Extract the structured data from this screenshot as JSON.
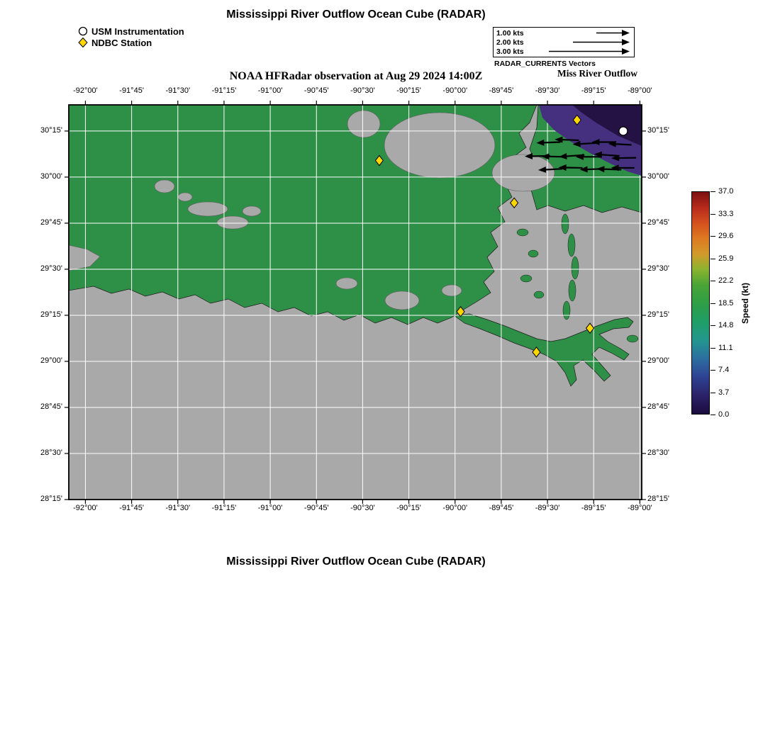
{
  "page": {
    "top_title": "Mississippi River Outflow Ocean Cube (RADAR)",
    "subtitle": "NOAA HFRadar observation at Aug 29 2024 14:00Z",
    "bottom_title": "Mississippi River Outflow Ocean Cube (RADAR)"
  },
  "legend": {
    "usm_label": "USM Instrumentation",
    "ndbc_label": "NDBC Station"
  },
  "vector_scale": {
    "rows": [
      {
        "label": "1.00 kts",
        "len": 45
      },
      {
        "label": "2.00 kts",
        "len": 78
      },
      {
        "label": "3.00 kts",
        "len": 112
      }
    ],
    "caption": "RADAR_CURRENTS Vectors",
    "subcaption": "Miss River Outflow"
  },
  "colorbar": {
    "label": "Speed (kt)",
    "ticks": [
      "37.0",
      "33.3",
      "29.6",
      "25.9",
      "22.2",
      "18.5",
      "14.8",
      "11.1",
      "7.4",
      "3.7",
      "0.0"
    ],
    "stops": [
      [
        "#1a0b3d",
        0
      ],
      [
        "#2b2168",
        8
      ],
      [
        "#2e4494",
        17
      ],
      [
        "#2d6fa0",
        25
      ],
      [
        "#23968f",
        33
      ],
      [
        "#1f9e68",
        41
      ],
      [
        "#2f9e45",
        50
      ],
      [
        "#49a437",
        58
      ],
      [
        "#8ab32f",
        65
      ],
      [
        "#d19a2a",
        72
      ],
      [
        "#dd7a22",
        79
      ],
      [
        "#d4511f",
        86
      ],
      [
        "#b62a1b",
        93
      ],
      [
        "#7c1012",
        100
      ]
    ]
  },
  "axes": {
    "lon_range": [
      -92.09,
      -88.99
    ],
    "lat_range": [
      28.25,
      30.392
    ],
    "lon_ticks": [
      {
        "v": -92.0,
        "label": "-92°00'"
      },
      {
        "v": -91.75,
        "label": "-91°45'"
      },
      {
        "v": -91.5,
        "label": "-91°30'"
      },
      {
        "v": -91.25,
        "label": "-91°15'"
      },
      {
        "v": -91.0,
        "label": "-91°00'"
      },
      {
        "v": -90.75,
        "label": "-90°45'"
      },
      {
        "v": -90.5,
        "label": "-90°30'"
      },
      {
        "v": -90.25,
        "label": "-90°15'"
      },
      {
        "v": -90.0,
        "label": "-90°00'"
      },
      {
        "v": -89.75,
        "label": "-89°45'"
      },
      {
        "v": -89.5,
        "label": "-89°30'"
      },
      {
        "v": -89.25,
        "label": "-89°15'"
      },
      {
        "v": -89.0,
        "label": "-89°00'"
      }
    ],
    "lat_ticks": [
      {
        "v": 30.25,
        "label": "30°15'"
      },
      {
        "v": 30.0,
        "label": "30°00'"
      },
      {
        "v": 29.75,
        "label": "29°45'"
      },
      {
        "v": 29.5,
        "label": "29°30'"
      },
      {
        "v": 29.25,
        "label": "29°15'"
      },
      {
        "v": 29.0,
        "label": "29°00'"
      },
      {
        "v": 28.75,
        "label": "28°45'"
      },
      {
        "v": 28.5,
        "label": "28°30'"
      },
      {
        "v": 28.25,
        "label": "28°15'"
      }
    ]
  },
  "map": {
    "colors": {
      "water": "#a9a9a9",
      "land": "#2e8f47",
      "land_stroke": "#1c1c1c",
      "water_stroke": "#5f5f5f",
      "radar_base": "#453080",
      "radar_core": "#241244",
      "grid": "#ffffff",
      "frame": "#000000",
      "vector": "#000000",
      "ndbc_fill": "#ffd700",
      "usm_fill": "#ffffff"
    },
    "land_polygons": [
      [
        [
          0,
          0
        ],
        [
          660,
          0
        ],
        [
          650,
          25
        ],
        [
          635,
          40
        ],
        [
          645,
          60
        ],
        [
          625,
          75
        ],
        [
          635,
          95
        ],
        [
          615,
          110
        ],
        [
          625,
          130
        ],
        [
          605,
          145
        ],
        [
          615,
          165
        ],
        [
          595,
          180
        ],
        [
          605,
          200
        ],
        [
          590,
          215
        ],
        [
          600,
          235
        ],
        [
          585,
          250
        ],
        [
          595,
          265
        ],
        [
          575,
          278
        ],
        [
          555,
          290
        ],
        [
          540,
          300
        ],
        [
          520,
          308
        ],
        [
          500,
          300
        ],
        [
          478,
          310
        ],
        [
          455,
          300
        ],
        [
          432,
          308
        ],
        [
          410,
          296
        ],
        [
          388,
          304
        ],
        [
          365,
          292
        ],
        [
          342,
          298
        ],
        [
          318,
          286
        ],
        [
          295,
          292
        ],
        [
          272,
          280
        ],
        [
          248,
          286
        ],
        [
          225,
          274
        ],
        [
          200,
          280
        ],
        [
          178,
          268
        ],
        [
          155,
          274
        ],
        [
          132,
          264
        ],
        [
          108,
          270
        ],
        [
          85,
          260
        ],
        [
          60,
          266
        ],
        [
          35,
          256
        ],
        [
          0,
          262
        ]
      ],
      [
        [
          662,
          0
        ],
        [
          808,
          0
        ],
        [
          808,
          152
        ],
        [
          780,
          144
        ],
        [
          752,
          152
        ],
        [
          726,
          142
        ],
        [
          700,
          150
        ],
        [
          676,
          142
        ],
        [
          660,
          148
        ],
        [
          652,
          120
        ],
        [
          662,
          92
        ],
        [
          650,
          62
        ],
        [
          660,
          32
        ]
      ],
      [
        [
          543,
          297
        ],
        [
          565,
          295
        ],
        [
          590,
          303
        ],
        [
          615,
          312
        ],
        [
          640,
          322
        ],
        [
          660,
          330
        ],
        [
          680,
          334
        ],
        [
          700,
          330
        ],
        [
          720,
          322
        ],
        [
          745,
          312
        ],
        [
          770,
          303
        ],
        [
          788,
          300
        ],
        [
          796,
          306
        ],
        [
          790,
          314
        ],
        [
          768,
          316
        ],
        [
          748,
          324
        ],
        [
          760,
          334
        ],
        [
          778,
          344
        ],
        [
          790,
          352
        ],
        [
          783,
          360
        ],
        [
          765,
          350
        ],
        [
          748,
          342
        ],
        [
          738,
          352
        ],
        [
          752,
          368
        ],
        [
          764,
          382
        ],
        [
          755,
          390
        ],
        [
          740,
          374
        ],
        [
          725,
          360
        ],
        [
          712,
          368
        ],
        [
          716,
          388
        ],
        [
          708,
          397
        ],
        [
          700,
          378
        ],
        [
          688,
          362
        ],
        [
          670,
          352
        ],
        [
          650,
          344
        ],
        [
          628,
          336
        ],
        [
          605,
          326
        ],
        [
          580,
          316
        ],
        [
          558,
          308
        ]
      ]
    ],
    "islands": [
      [
        700,
        168,
        5,
        14
      ],
      [
        709,
        198,
        5,
        16
      ],
      [
        714,
        230,
        5,
        16
      ],
      [
        710,
        262,
        5,
        15
      ],
      [
        702,
        290,
        5,
        13
      ],
      [
        640,
        180,
        8,
        5
      ],
      [
        655,
        210,
        7,
        5
      ],
      [
        645,
        245,
        8,
        5
      ],
      [
        663,
        268,
        7,
        5
      ],
      [
        795,
        330,
        8,
        5
      ]
    ],
    "lakes": [
      [
        523,
        57,
        78,
        46
      ],
      [
        416,
        27,
        23,
        19
      ],
      [
        641,
        96,
        44,
        26
      ],
      [
        135,
        115,
        14,
        9
      ],
      [
        196,
        147,
        28,
        10
      ],
      [
        231,
        166,
        22,
        9
      ],
      [
        258,
        150,
        13,
        7
      ],
      [
        164,
        130,
        10,
        6
      ],
      [
        470,
        276,
        24,
        13
      ],
      [
        392,
        252,
        15,
        8
      ],
      [
        540,
        262,
        14,
        8
      ]
    ],
    "water_polygons": [
      [
        [
          0,
          198
        ],
        [
          26,
          204
        ],
        [
          44,
          214
        ],
        [
          30,
          228
        ],
        [
          0,
          234
        ]
      ]
    ],
    "radar_region": [
      [
        663,
        0
      ],
      [
        808,
        0
      ],
      [
        808,
        100
      ],
      [
        788,
        94
      ],
      [
        762,
        82
      ],
      [
        735,
        68
      ],
      [
        708,
        52
      ],
      [
        685,
        36
      ],
      [
        668,
        18
      ]
    ],
    "radar_core": [
      [
        710,
        0
      ],
      [
        808,
        0
      ],
      [
        808,
        58
      ],
      [
        775,
        44
      ],
      [
        745,
        26
      ],
      [
        722,
        10
      ]
    ],
    "vectors": [
      [
        -89.43,
        30.19,
        182,
        24
      ],
      [
        -89.33,
        30.2,
        178,
        24
      ],
      [
        -89.23,
        30.185,
        183,
        25
      ],
      [
        -89.13,
        30.19,
        180,
        24
      ],
      [
        -89.045,
        30.175,
        177,
        23
      ],
      [
        -89.485,
        30.115,
        181,
        26
      ],
      [
        -89.395,
        30.11,
        179,
        26
      ],
      [
        -89.3,
        30.12,
        184,
        26
      ],
      [
        -89.205,
        30.11,
        180,
        27
      ],
      [
        -89.11,
        30.115,
        176,
        26
      ],
      [
        -89.02,
        30.105,
        181,
        25
      ],
      [
        -89.42,
        30.045,
        183,
        24
      ],
      [
        -89.31,
        30.05,
        179,
        24
      ],
      [
        -89.195,
        30.045,
        182,
        24
      ],
      [
        -89.1,
        30.04,
        178,
        25
      ],
      [
        -89.03,
        30.05,
        180,
        23
      ]
    ],
    "ndbc_stations": [
      [
        -89.34,
        30.31
      ],
      [
        -90.41,
        30.09
      ],
      [
        -89.68,
        29.86
      ],
      [
        -89.97,
        29.27
      ],
      [
        -89.56,
        29.05
      ],
      [
        -89.27,
        29.18
      ]
    ],
    "usm_stations": [
      [
        -89.09,
        30.25
      ]
    ]
  }
}
